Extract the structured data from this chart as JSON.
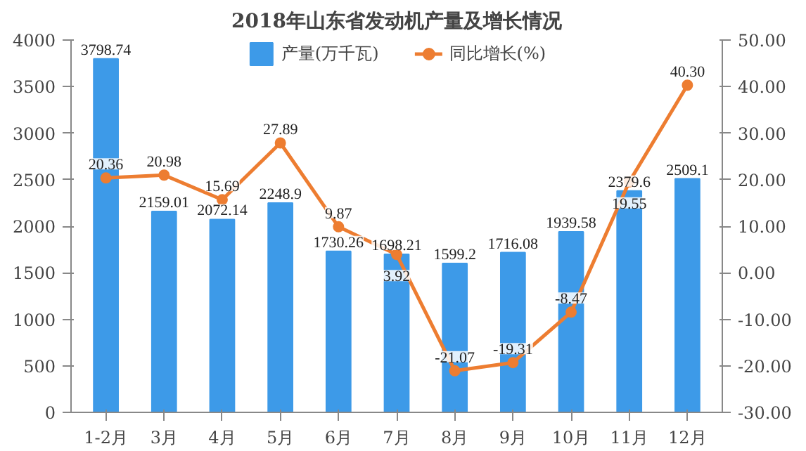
{
  "chart_data": {
    "type": "bar",
    "title": "2018年山东省发动机产量及增长情况",
    "categories": [
      "1-2月",
      "3月",
      "4月",
      "5月",
      "6月",
      "7月",
      "8月",
      "9月",
      "10月",
      "11月",
      "12月"
    ],
    "series": [
      {
        "name": "产量(万千瓦)",
        "color": "#3d9ae8",
        "values": [
          3798.74,
          2159.01,
          2072.14,
          2248.9,
          1730.26,
          1698.21,
          1599.2,
          1716.08,
          1939.58,
          2379.6,
          2509.1
        ],
        "value_labels": [
          "3798.74",
          "2159.01",
          "2072.14",
          "2248.9",
          "1730.26",
          "1698.21",
          "1599.2",
          "1716.08",
          "1939.58",
          "2379.6",
          "2509.1"
        ]
      },
      {
        "name": "同比增长(%)",
        "type": "line",
        "axis": "y2",
        "color": "#ed7d31",
        "marker": "circle",
        "values": [
          20.36,
          20.98,
          15.69,
          27.89,
          9.87,
          3.92,
          -21.07,
          -19.31,
          -8.47,
          19.55,
          40.3
        ],
        "value_labels": [
          "20.36",
          "20.98",
          "15.69",
          "27.89",
          "9.87",
          "3.92",
          "-21.07",
          "-19.31",
          "-8.47",
          "19.55",
          "40.30"
        ]
      }
    ],
    "ylim": [
      0,
      4000
    ],
    "yticks": [
      0,
      500,
      1000,
      1500,
      2000,
      2500,
      3000,
      3500,
      4000
    ],
    "y2lim": [
      -30,
      50
    ],
    "y2ticks": [
      {
        "value": -30,
        "label": "-30.00"
      },
      {
        "value": -20,
        "label": "-20.00"
      },
      {
        "value": -10,
        "label": "-10.00"
      },
      {
        "value": 0,
        "label": "0.00"
      },
      {
        "value": 10,
        "label": "10.00"
      },
      {
        "value": 20,
        "label": "20.00"
      },
      {
        "value": 30,
        "label": "30.00"
      },
      {
        "value": 40,
        "label": "40.00"
      },
      {
        "value": 50,
        "label": "50.00"
      }
    ],
    "grid": false,
    "legend": "top"
  }
}
